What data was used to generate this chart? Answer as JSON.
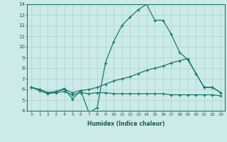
{
  "xlabel": "Humidex (Indice chaleur)",
  "ylabel": "",
  "xlim": [
    -0.5,
    23.5
  ],
  "ylim": [
    4,
    14
  ],
  "xticks": [
    0,
    1,
    2,
    3,
    4,
    5,
    6,
    7,
    8,
    9,
    10,
    11,
    12,
    13,
    14,
    15,
    16,
    17,
    18,
    19,
    20,
    21,
    22,
    23
  ],
  "yticks": [
    4,
    5,
    6,
    7,
    8,
    9,
    10,
    11,
    12,
    13,
    14
  ],
  "bg_color": "#cceae7",
  "grid_color": "#aad4d0",
  "line_color": "#1a7a6e",
  "line1_x": [
    0,
    1,
    2,
    3,
    4,
    5,
    6,
    7,
    8,
    9,
    10,
    11,
    12,
    13,
    14,
    15,
    16,
    17,
    18,
    19,
    20,
    21,
    22,
    23
  ],
  "line1_y": [
    6.2,
    6.0,
    5.7,
    5.8,
    6.1,
    5.1,
    5.9,
    3.8,
    4.3,
    8.5,
    10.5,
    12.0,
    12.8,
    13.5,
    14.0,
    12.5,
    12.5,
    11.2,
    9.5,
    8.8,
    7.5,
    6.2,
    6.2,
    5.7
  ],
  "line2_x": [
    0,
    1,
    2,
    3,
    4,
    5,
    6,
    7,
    8,
    9,
    10,
    11,
    12,
    13,
    14,
    15,
    16,
    17,
    18,
    19,
    20,
    21,
    22,
    23
  ],
  "line2_y": [
    6.2,
    6.0,
    5.7,
    5.8,
    6.0,
    5.7,
    5.9,
    6.0,
    6.2,
    6.5,
    6.8,
    7.0,
    7.2,
    7.5,
    7.8,
    8.0,
    8.2,
    8.5,
    8.7,
    8.9,
    7.5,
    6.2,
    6.2,
    5.7
  ],
  "line3_x": [
    0,
    1,
    2,
    3,
    4,
    5,
    6,
    7,
    8,
    9,
    10,
    11,
    12,
    13,
    14,
    15,
    16,
    17,
    18,
    19,
    20,
    21,
    22,
    23
  ],
  "line3_y": [
    6.2,
    5.9,
    5.6,
    5.7,
    5.8,
    5.5,
    5.7,
    5.6,
    5.7,
    5.7,
    5.6,
    5.6,
    5.6,
    5.6,
    5.6,
    5.6,
    5.6,
    5.5,
    5.5,
    5.5,
    5.5,
    5.5,
    5.5,
    5.4
  ]
}
